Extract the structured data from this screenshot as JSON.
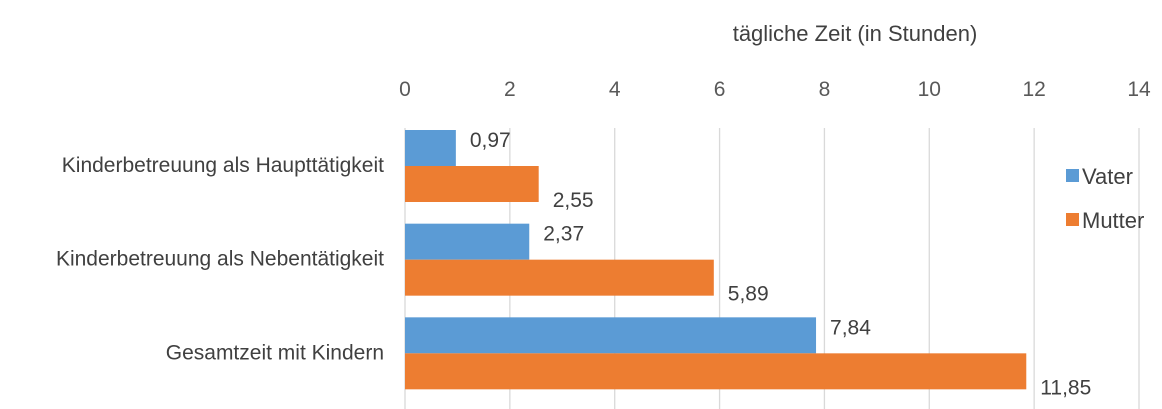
{
  "chart_data": {
    "type": "bar",
    "orientation": "horizontal",
    "xlabel": "tägliche Zeit (in Stunden)",
    "xlim": [
      0,
      14
    ],
    "x_ticks": [
      "0",
      "2",
      "4",
      "6",
      "8",
      "10",
      "12",
      "14"
    ],
    "grid": true,
    "legend_position": "right",
    "categories": [
      "Kinderbetreuung als Haupttätigkeit",
      "Kinderbetreuung als Nebentätigkeit",
      "Gesamtzeit mit Kindern"
    ],
    "series": [
      {
        "name": "Vater",
        "color": "#5b9bd5",
        "values": [
          0.97,
          2.37,
          7.84
        ],
        "labels": [
          "0,97",
          "2,37",
          "7,84"
        ]
      },
      {
        "name": "Mutter",
        "color": "#ed7d31",
        "values": [
          2.55,
          5.89,
          11.85
        ],
        "labels": [
          "2,55",
          "5,89",
          "11,85"
        ]
      }
    ]
  }
}
